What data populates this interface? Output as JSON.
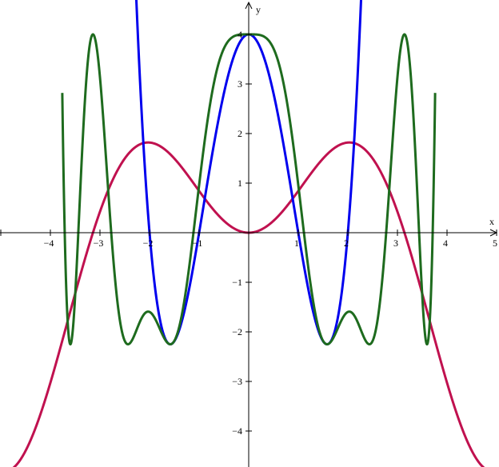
{
  "chart_data": {
    "type": "line",
    "title": "",
    "xlabel": "x",
    "ylabel": "y",
    "xlim": [
      -5,
      5
    ],
    "ylim": [
      -4.7,
      4.7
    ],
    "grid": false,
    "legend": "none",
    "x_ticks": [
      -4,
      -3,
      -2,
      -1,
      1,
      2,
      3,
      4,
      5
    ],
    "x_tick_labels": [
      "−4",
      "−3",
      "−2",
      "−1",
      "1",
      "2",
      "3",
      "4",
      "5"
    ],
    "y_ticks": [
      -4,
      -3,
      -2,
      -1,
      1,
      2,
      3,
      4
    ],
    "y_tick_labels": [
      "−4",
      "−3",
      "−2",
      "−1",
      "1",
      "2",
      "3",
      "4"
    ],
    "series": [
      {
        "formula": "x·sin(x)",
        "color": "#c0114f",
        "domain": [
          -5,
          5
        ],
        "key_points": [
          [
            0,
            0
          ],
          [
            -2.03,
            1.82
          ],
          [
            2.03,
            1.82
          ],
          [
            -3.14,
            0
          ],
          [
            3.14,
            0
          ],
          [
            -4.7,
            -4.7
          ],
          [
            4.7,
            -4.7
          ]
        ]
      },
      {
        "formula": "x^4 − 5x^2 + 4",
        "color": "#0000ee",
        "domain": [
          -2.5,
          2.5
        ],
        "key_points": [
          [
            0,
            4
          ],
          [
            -1.58,
            -2.25
          ],
          [
            1.58,
            -2.25
          ],
          [
            -2,
            0
          ],
          [
            -1,
            0
          ],
          [
            1,
            0
          ],
          [
            2,
            0
          ]
        ]
      },
      {
        "formula": "(x·sin x)^4 − 5(x·sin x)^2 + 4",
        "color": "#1e6b1e",
        "domain": [
          -3.76,
          3.76
        ],
        "key_points": [
          [
            0,
            4
          ],
          [
            -3.14,
            4
          ],
          [
            3.14,
            4
          ],
          [
            -2.03,
            -1.6
          ],
          [
            2.03,
            -1.6
          ],
          [
            -1.6,
            -2.25
          ],
          [
            1.6,
            -2.25
          ],
          [
            -2.45,
            -2.25
          ],
          [
            2.45,
            -2.25
          ],
          [
            -3.65,
            -2.25
          ],
          [
            3.65,
            -2.25
          ]
        ]
      }
    ]
  }
}
